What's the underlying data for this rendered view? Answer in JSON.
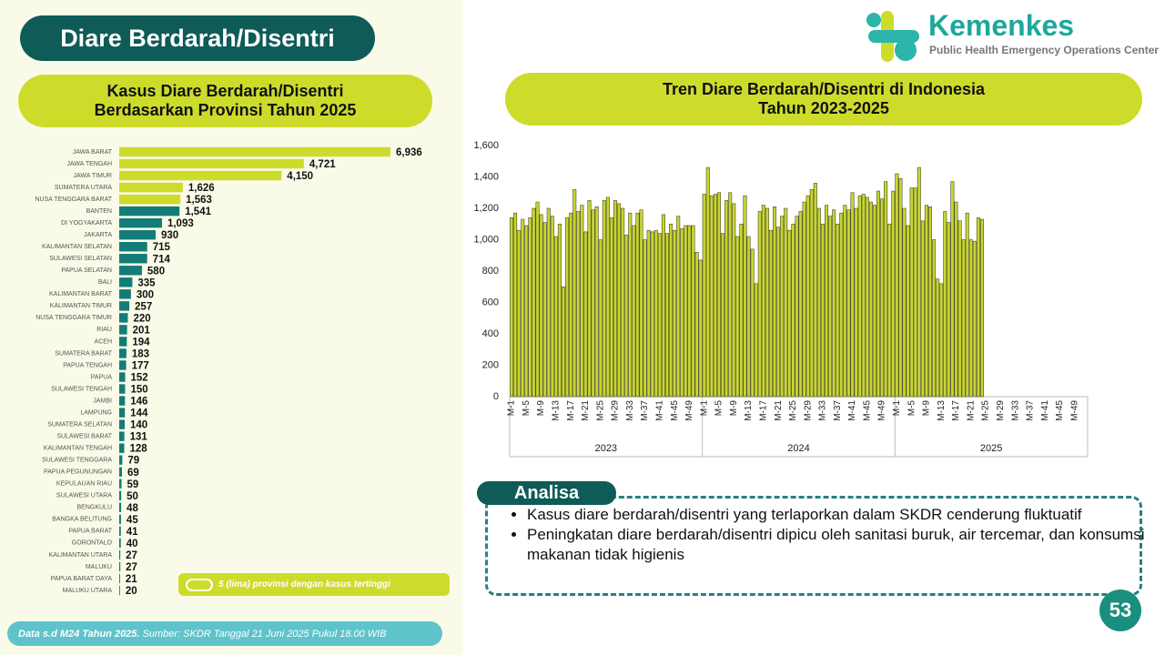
{
  "header": {
    "title": "Diare Berdarah/Disentri",
    "logo_name": "Kemenkes",
    "logo_subtitle": "Public Health Emergency Operations Center"
  },
  "chart_data": [
    {
      "type": "hbar",
      "title": [
        "Kasus Diare Berdarah/Disentri",
        "Berdasarkan Provinsi Tahun 2025"
      ],
      "categories": [
        "JAWA BARAT",
        "JAWA TENGAH",
        "JAWA TIMUR",
        "SUMATERA UTARA",
        "NUSA TENGGARA BARAT",
        "BANTEN",
        "DI YOGYAKARTA",
        "JAKARTA",
        "KALIMANTAN SELATAN",
        "SULAWESI SELATAN",
        "PAPUA SELATAN",
        "BALI",
        "KALIMANTAN BARAT",
        "KALIMANTAN TIMUR",
        "NUSA TENGGARA TIMUR",
        "RIAU",
        "ACEH",
        "SUMATERA BARAT",
        "PAPUA TENGAH",
        "PAPUA",
        "SULAWESI TENGAH",
        "JAMBI",
        "LAMPUNG",
        "SUMATERA SELATAN",
        "SULAWESI BARAT",
        "KALIMANTAN TENGAH",
        "SULAWESI TENGGARA",
        "PAPUA PEGUNUNGAN",
        "KEPULAUAN RIAU",
        "SULAWESI UTARA",
        "BENGKULU",
        "BANGKA BELITUNG",
        "PAPUA BARAT",
        "GORONTALO",
        "KALIMANTAN UTARA",
        "MALUKU",
        "PAPUA BARAT DAYA",
        "MALUKU UTARA"
      ],
      "values": [
        6936,
        4721,
        4150,
        1626,
        1563,
        1541,
        1093,
        930,
        715,
        714,
        580,
        335,
        300,
        257,
        220,
        201,
        194,
        183,
        177,
        152,
        150,
        146,
        144,
        140,
        131,
        128,
        79,
        69,
        59,
        50,
        48,
        45,
        41,
        40,
        27,
        27,
        21,
        20
      ],
      "value_labels": [
        "6,936",
        "4,721",
        "4,150",
        "1,626",
        "1,563",
        "1,541",
        "1,093",
        "930",
        "715",
        "714",
        "580",
        "335",
        "300",
        "257",
        "220",
        "201",
        "194",
        "183",
        "177",
        "152",
        "150",
        "146",
        "144",
        "140",
        "131",
        "128",
        "79",
        "69",
        "59",
        "50",
        "48",
        "45",
        "41",
        "40",
        "27",
        "27",
        "21",
        "20"
      ],
      "colors": [
        "#cddc2b",
        "#cddc2b",
        "#cddc2b",
        "#cddc2b",
        "#cddc2b",
        "#137b78",
        "#137b78",
        "#137b78",
        "#137b78",
        "#137b78",
        "#137b78",
        "#137b78",
        "#137b78",
        "#137b78",
        "#137b78",
        "#137b78",
        "#137b78",
        "#137b78",
        "#137b78",
        "#137b78",
        "#137b78",
        "#137b78",
        "#137b78",
        "#137b78",
        "#137b78",
        "#137b78",
        "#137b78",
        "#137b78",
        "#137b78",
        "#137b78",
        "#137b78",
        "#137b78",
        "#137b78",
        "#137b78",
        "#137b78",
        "#137b78",
        "#137b78",
        "#137b78"
      ],
      "legend": {
        "label": "5 (lima) provinsi dengan kasus tertinggi",
        "color": "#cddc2b"
      }
    },
    {
      "type": "bar",
      "title": [
        "Tren Diare Berdarah/Disentri di Indonesia",
        "Tahun 2023-2025"
      ],
      "groups": [
        "2023",
        "2024",
        "2025"
      ],
      "categories": [
        "M-1",
        null,
        null,
        null,
        "M-5",
        null,
        null,
        null,
        "M-9",
        null,
        null,
        null,
        "M-13",
        null,
        null,
        null,
        "M-17",
        null,
        null,
        null,
        "M-21",
        null,
        null,
        null,
        "M-25",
        null,
        null,
        null,
        "M-29",
        null,
        null,
        null,
        "M-33",
        null,
        null,
        null,
        "M-37",
        null,
        null,
        null,
        "M-41",
        null,
        null,
        null,
        "M-45",
        null,
        null,
        null,
        "M-49",
        null,
        null,
        null,
        "M-1",
        null,
        null,
        null,
        "M-5",
        null,
        null,
        null,
        "M-9",
        null,
        null,
        null,
        "M-13",
        null,
        null,
        null,
        "M-17",
        null,
        null,
        null,
        "M-21",
        null,
        null,
        null,
        "M-25",
        null,
        null,
        null,
        "M-29",
        null,
        null,
        null,
        "M-33",
        null,
        null,
        null,
        "M-37",
        null,
        null,
        null,
        "M-41",
        null,
        null,
        null,
        "M-45",
        null,
        null,
        null,
        "M-49",
        null,
        null,
        null,
        "M-1",
        null,
        null,
        null,
        "M-5",
        null,
        null,
        null,
        "M-9",
        null,
        null,
        null,
        "M-13",
        null,
        null,
        null,
        "M-17",
        null,
        null,
        null,
        "M-21",
        null,
        null,
        null,
        "M-25",
        null,
        null,
        null,
        "M-29",
        null,
        null,
        null,
        "M-33",
        null,
        null,
        null,
        "M-37",
        null,
        null,
        null,
        "M-41",
        null,
        null,
        null,
        "M-45",
        null,
        null,
        null,
        "M-49",
        null,
        null,
        null
      ],
      "values": [
        1140,
        1170,
        1060,
        1130,
        1090,
        1140,
        1200,
        1240,
        1160,
        1110,
        1200,
        1150,
        1020,
        1100,
        700,
        1140,
        1170,
        1320,
        1180,
        1220,
        1050,
        1250,
        1190,
        1210,
        1000,
        1250,
        1270,
        1140,
        1250,
        1230,
        1200,
        1030,
        1170,
        1090,
        1170,
        1190,
        1000,
        1060,
        1050,
        1060,
        1040,
        1160,
        1040,
        1100,
        1060,
        1150,
        1070,
        1090,
        1090,
        1090,
        920,
        870,
        1290,
        1460,
        1280,
        1290,
        1300,
        1040,
        1250,
        1300,
        1230,
        1020,
        1100,
        1280,
        1020,
        940,
        720,
        1180,
        1220,
        1200,
        1060,
        1210,
        1080,
        1150,
        1200,
        1060,
        1100,
        1150,
        1180,
        1240,
        1280,
        1320,
        1360,
        1200,
        1100,
        1220,
        1150,
        1190,
        1100,
        1170,
        1220,
        1190,
        1300,
        1200,
        1280,
        1290,
        1270,
        1240,
        1220,
        1310,
        1260,
        1370,
        1100,
        1310,
        1420,
        1390,
        1200,
        1090,
        1330,
        1330,
        1460,
        1120,
        1220,
        1210,
        1000,
        750,
        720,
        1180,
        1110,
        1370,
        1240,
        1120,
        1000,
        1170,
        1000,
        990,
        1140,
        1130,
        null,
        null,
        null,
        null,
        null,
        null,
        null,
        null,
        null,
        null,
        null,
        null,
        null,
        null,
        null,
        null,
        null,
        null,
        null,
        null,
        null,
        null,
        null,
        null,
        null,
        null,
        null,
        null
      ],
      "color": "#c8d62e",
      "ylim": [
        0,
        1600
      ],
      "yticks": [
        0,
        200,
        400,
        600,
        800,
        {
          "value": 1000,
          "label": "1,000"
        },
        {
          "value": 1200,
          "label": "1,200"
        },
        {
          "value": 1400,
          "label": "1,400"
        },
        {
          "value": 1600,
          "label": "1,600"
        }
      ]
    }
  ],
  "analysis": {
    "title": "Analisa",
    "bullets": [
      "Kasus diare berdarah/disentri yang terlaporkan dalam SKDR cenderung fluktuatif",
      "Peningkatan diare berdarah/disentri dipicu oleh sanitasi buruk, air tercemar, dan konsumsi makanan tidak higienis"
    ]
  },
  "footer": {
    "note": "Data s.d M24 Tahun 2025.",
    "source": "Sumber: SKDR Tanggal 21 Juni 2025 Pukul 18.00 WIB"
  },
  "page_number": "53"
}
